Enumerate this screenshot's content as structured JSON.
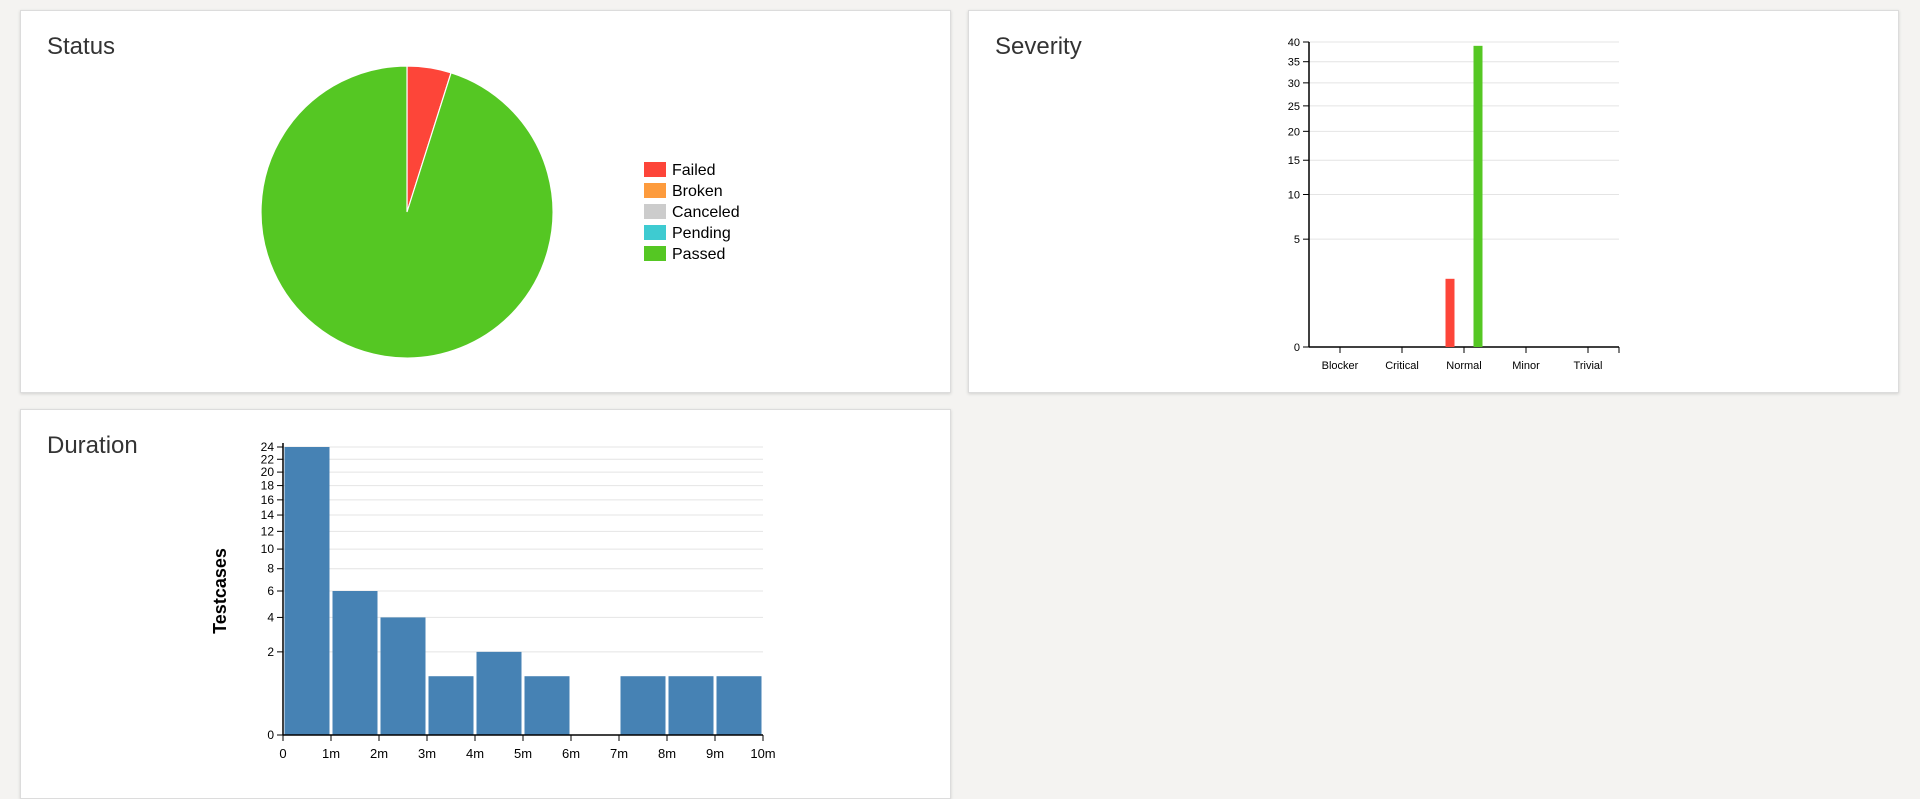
{
  "panels": {
    "status_title": "Status",
    "severity_title": "Severity",
    "duration_title": "Duration"
  },
  "chart_data": [
    {
      "type": "pie",
      "title": "Status",
      "slices": [
        {
          "label": "Failed",
          "value": 2,
          "color": "#fd4539"
        },
        {
          "label": "Broken",
          "value": 0,
          "color": "#fd9b3d"
        },
        {
          "label": "Canceled",
          "value": 0,
          "color": "#cccccc"
        },
        {
          "label": "Pending",
          "value": 0,
          "color": "#3ecbd1"
        },
        {
          "label": "Passed",
          "value": 39,
          "color": "#55c723"
        }
      ],
      "legend": "right"
    },
    {
      "type": "bar",
      "title": "Severity",
      "categories": [
        "Blocker",
        "Critical",
        "Normal",
        "Minor",
        "Trivial"
      ],
      "series": [
        {
          "name": "Failed",
          "color": "#fd4539",
          "values": [
            0,
            0,
            2,
            0,
            0
          ]
        },
        {
          "name": "Passed",
          "color": "#55c723",
          "values": [
            0,
            0,
            39,
            0,
            0
          ]
        }
      ],
      "yscale": "sqrt",
      "yticks": [
        0,
        5,
        10,
        15,
        20,
        25,
        30,
        35,
        40
      ],
      "ylim": [
        0,
        40
      ],
      "grid": true
    },
    {
      "type": "bar",
      "title": "Duration",
      "ylabel": "Testcases",
      "xticks": [
        "0",
        "1m",
        "2m",
        "3m",
        "4m",
        "5m",
        "6m",
        "7m",
        "8m",
        "9m",
        "10m"
      ],
      "bins": [
        {
          "from": 0,
          "to": 1,
          "value": 24
        },
        {
          "from": 1,
          "to": 2,
          "value": 6
        },
        {
          "from": 2,
          "to": 3,
          "value": 4
        },
        {
          "from": 3,
          "to": 4,
          "value": 1
        },
        {
          "from": 4,
          "to": 5,
          "value": 2
        },
        {
          "from": 5,
          "to": 6,
          "value": 1
        },
        {
          "from": 6,
          "to": 7,
          "value": 0
        },
        {
          "from": 7,
          "to": 8,
          "value": 1
        },
        {
          "from": 8,
          "to": 9,
          "value": 1
        },
        {
          "from": 9,
          "to": 10,
          "value": 1
        }
      ],
      "bar_color": "#4682b4",
      "yscale": "sqrt",
      "yticks": [
        0,
        2,
        4,
        6,
        8,
        10,
        12,
        14,
        16,
        18,
        20,
        22,
        24
      ],
      "ylim": [
        0,
        24
      ],
      "grid": true
    }
  ]
}
